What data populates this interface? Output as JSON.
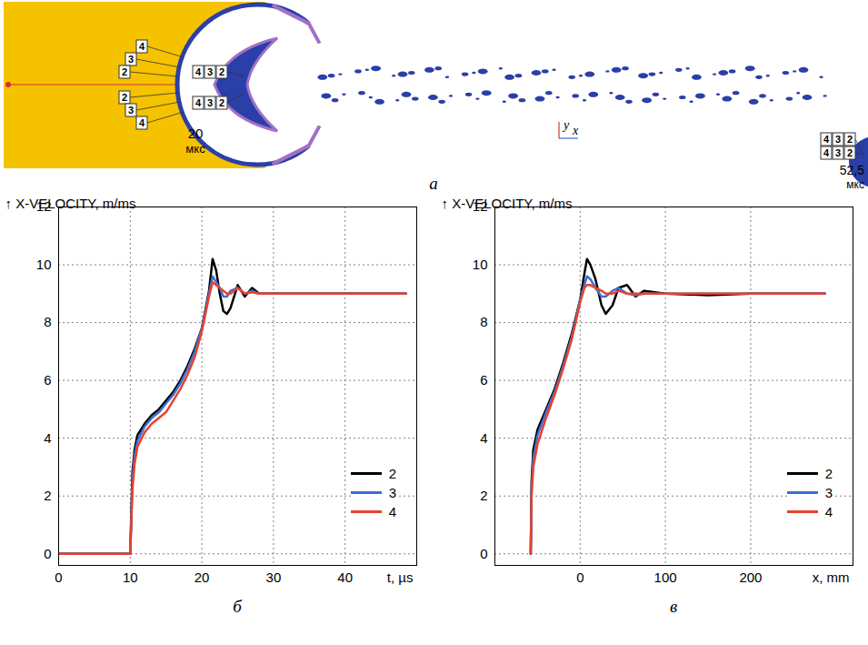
{
  "figure_a": {
    "panel": "а",
    "gauge_labels": [
      "2",
      "3",
      "4"
    ],
    "times": [
      {
        "time": "20",
        "unit": "мкс"
      },
      {
        "time": "52,5",
        "unit": "мкс"
      }
    ],
    "axes": [
      "y",
      "x"
    ]
  },
  "chart_data": [
    {
      "type": "line",
      "panel": "б",
      "x_label": "t, µs",
      "y_label": "X-VELOCITY, m/ms",
      "x": [
        0,
        10,
        10.3,
        10.6,
        11,
        12,
        13,
        14,
        15,
        16,
        17,
        18,
        19,
        20,
        21,
        21.5,
        22,
        22.5,
        23,
        23.5,
        24,
        25,
        26,
        27,
        28,
        30,
        35,
        40,
        48.5
      ],
      "series": [
        {
          "name": "2",
          "color": "#000000",
          "values": [
            0,
            0,
            2.8,
            3.6,
            4.1,
            4.5,
            4.8,
            5.0,
            5.3,
            5.6,
            6.0,
            6.5,
            7.1,
            7.8,
            9.1,
            10.2,
            9.8,
            9.0,
            8.4,
            8.3,
            8.5,
            9.3,
            8.9,
            9.2,
            9.0,
            9.0,
            9.0,
            9.0,
            9.0
          ]
        },
        {
          "name": "3",
          "color": "#3a6fd8",
          "values": [
            0,
            0,
            2.5,
            3.4,
            3.9,
            4.4,
            4.7,
            4.9,
            5.2,
            5.5,
            5.9,
            6.4,
            7.0,
            7.8,
            9.0,
            9.6,
            9.4,
            9.2,
            8.9,
            8.9,
            9.1,
            9.2,
            9.0,
            9.1,
            9.0,
            9.0,
            9.0,
            9.0,
            9.0
          ]
        },
        {
          "name": "4",
          "color": "#e8412c",
          "values": [
            0,
            0,
            2.2,
            3.1,
            3.7,
            4.2,
            4.5,
            4.7,
            4.9,
            5.3,
            5.7,
            6.2,
            6.8,
            7.7,
            8.9,
            9.4,
            9.3,
            9.2,
            9.1,
            9.0,
            9.0,
            9.2,
            9.0,
            9.05,
            9.0,
            9.0,
            9.0,
            9.0,
            9.0
          ]
        }
      ],
      "xlim": [
        0,
        50
      ],
      "xticks": [
        0,
        10,
        20,
        30,
        40
      ],
      "ylim": [
        -0.4,
        12
      ],
      "yticks": [
        0,
        2,
        4,
        6,
        8,
        10,
        12
      ],
      "grid": true,
      "legend": "bottom-right"
    },
    {
      "type": "line",
      "panel": "в",
      "x_label": "x, mm",
      "y_label": "X-VELOCITY, m/ms",
      "x": [
        -58,
        -57,
        -55,
        -50,
        -40,
        -30,
        -20,
        -10,
        0,
        5,
        8,
        12,
        18,
        25,
        30,
        38,
        45,
        55,
        65,
        75,
        100,
        150,
        200,
        250,
        287
      ],
      "series": [
        {
          "name": "2",
          "color": "#000000",
          "values": [
            0,
            2.5,
            3.6,
            4.3,
            5.0,
            5.7,
            6.6,
            7.6,
            8.8,
            9.7,
            10.2,
            10.0,
            9.5,
            8.6,
            8.3,
            8.6,
            9.2,
            9.3,
            8.9,
            9.1,
            9.0,
            8.95,
            9.0,
            9.0,
            9.0
          ]
        },
        {
          "name": "3",
          "color": "#3a6fd8",
          "values": [
            0,
            2.2,
            3.3,
            4.1,
            4.9,
            5.6,
            6.5,
            7.5,
            8.8,
            9.3,
            9.6,
            9.5,
            9.2,
            8.9,
            8.9,
            9.1,
            9.2,
            9.0,
            8.95,
            9.0,
            9.0,
            9.0,
            9.0,
            9.0,
            9.0
          ]
        },
        {
          "name": "4",
          "color": "#e8412c",
          "values": [
            0,
            2.0,
            3.0,
            3.8,
            4.7,
            5.5,
            6.4,
            7.4,
            8.7,
            9.2,
            9.3,
            9.3,
            9.2,
            9.1,
            9.0,
            9.0,
            9.1,
            9.0,
            9.0,
            9.0,
            9.0,
            9.0,
            9.0,
            9.0,
            9.0
          ]
        }
      ],
      "xlim": [
        -100,
        320
      ],
      "xticks": [
        0,
        100,
        200
      ],
      "ylim": [
        -0.4,
        12
      ],
      "yticks": [
        0,
        2,
        4,
        6,
        8,
        10,
        12
      ],
      "grid": true,
      "legend": "bottom-right"
    }
  ]
}
